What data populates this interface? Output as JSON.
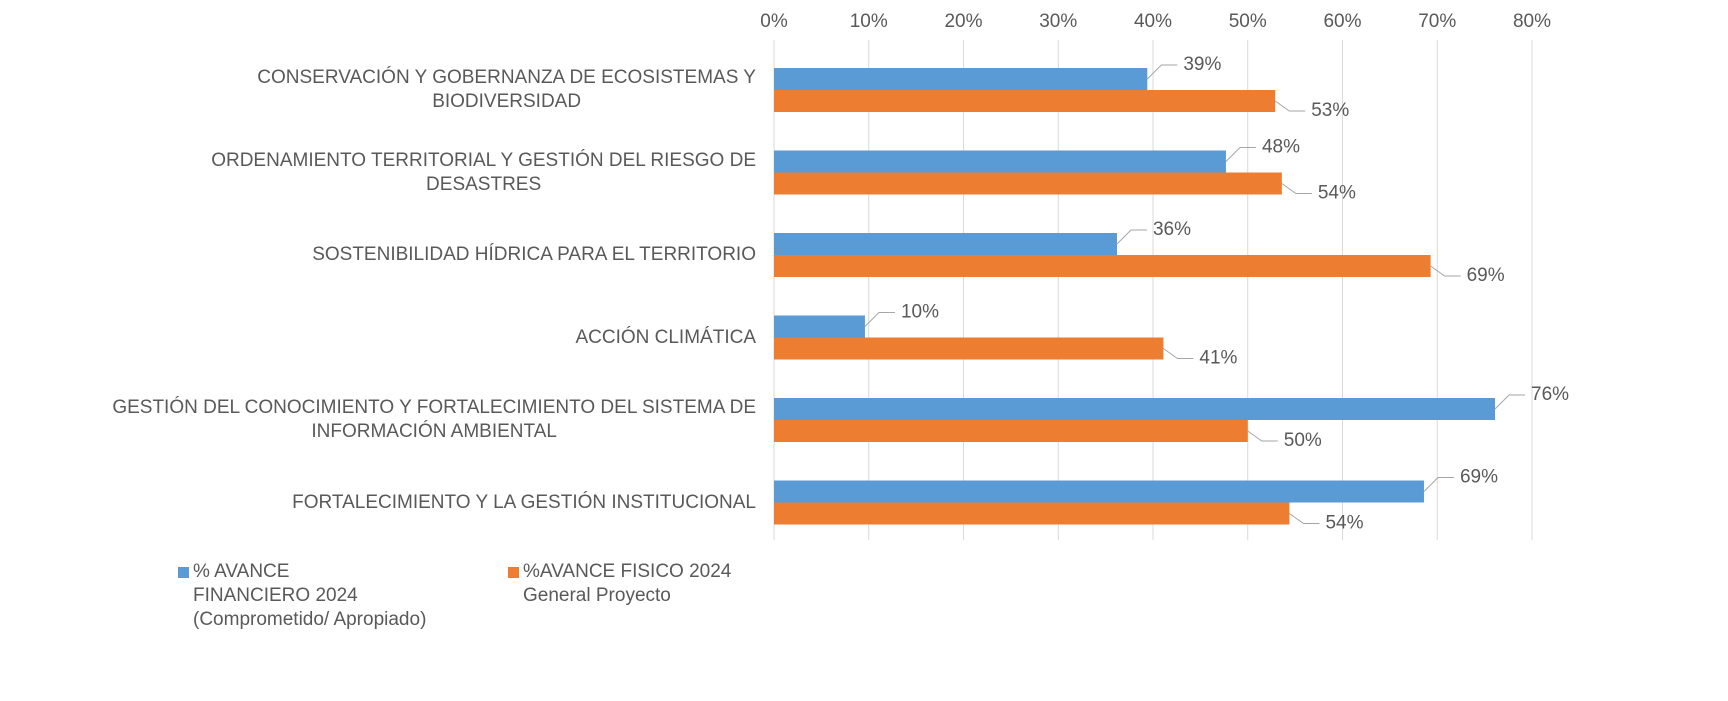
{
  "chart_data": {
    "type": "bar",
    "orientation": "horizontal",
    "categories": [
      "CONSERVACIÓN Y GOBERNANZA DE ECOSISTEMAS Y\nBIODIVERSIDAD",
      "ORDENAMIENTO TERRITORIAL Y GESTIÓN DEL RIESGO DE\nDESASTRES",
      "SOSTENIBILIDAD HÍDRICA PARA EL TERRITORIO",
      "ACCIÓN CLIMÁTICA",
      "GESTIÓN DEL CONOCIMIENTO Y FORTALECIMIENTO DEL SISTEMA DE\nINFORMACIÓN AMBIENTAL",
      "FORTALECIMIENTO Y LA GESTIÓN INSTITUCIONAL"
    ],
    "series": [
      {
        "name": "% AVANCE\nFINANCIERO 2024\n(Comprometido/ Apropiado)",
        "color": "#5b9bd5",
        "values": [
          39.4,
          47.7,
          36.2,
          9.6,
          76.1,
          68.6
        ],
        "value_labels": [
          "39%",
          "48%",
          "36%",
          "10%",
          "76%",
          "69%"
        ]
      },
      {
        "name": "%AVANCE FISICO 2024\nGeneral Proyecto",
        "color": "#ed7d31",
        "values": [
          52.9,
          53.6,
          69.3,
          41.1,
          50.0,
          54.4
        ],
        "value_labels": [
          "53%",
          "54%",
          "69%",
          "41%",
          "50%",
          "54%"
        ]
      }
    ],
    "xlim": [
      0,
      80
    ],
    "xticks": [
      {
        "value": 0,
        "label": "0%"
      },
      {
        "value": 10,
        "label": "10%"
      },
      {
        "value": 20,
        "label": "20%"
      },
      {
        "value": 30,
        "label": "30%"
      },
      {
        "value": 40,
        "label": "40%"
      },
      {
        "value": 50,
        "label": "50%"
      },
      {
        "value": 60,
        "label": "60%"
      },
      {
        "value": 70,
        "label": "70%"
      },
      {
        "value": 80,
        "label": "80%"
      }
    ],
    "grid": true,
    "legend": "bottom"
  }
}
